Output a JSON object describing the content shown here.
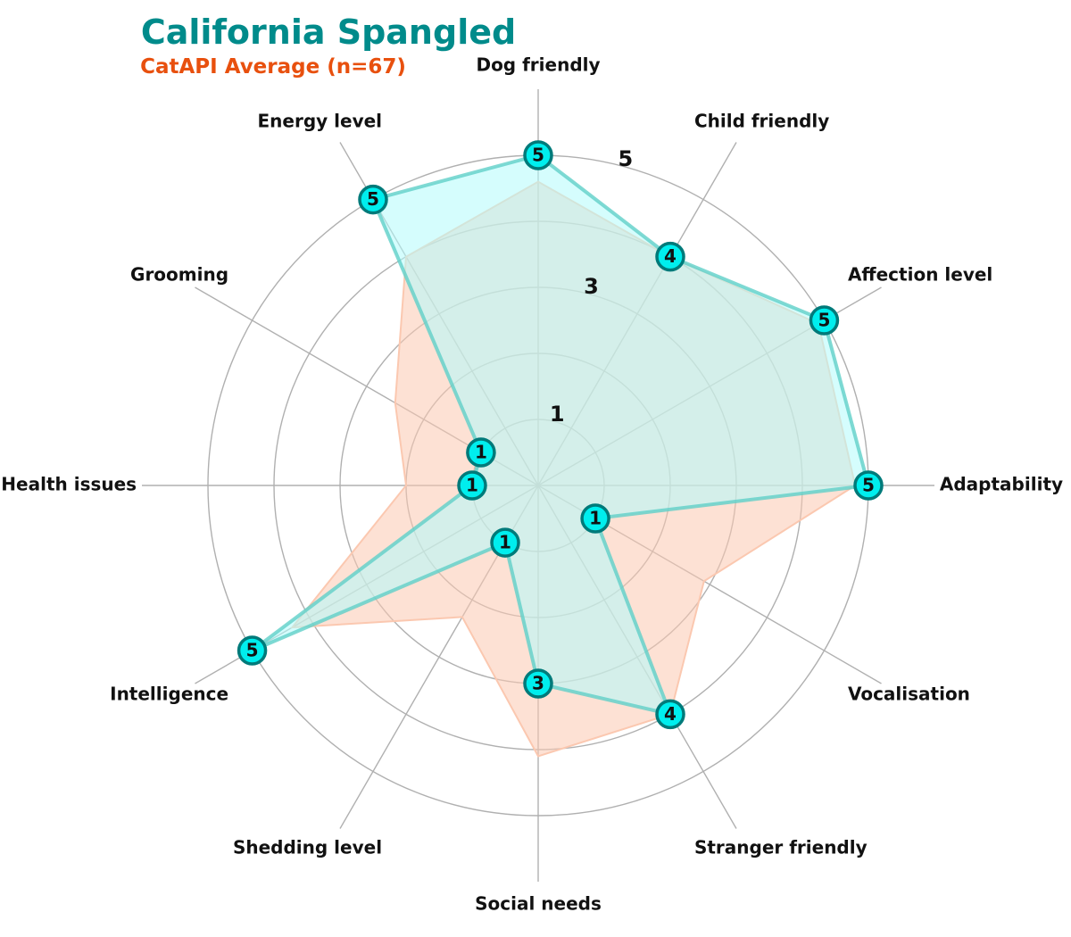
{
  "chart_data": {
    "type": "radar",
    "title": "California Spangled",
    "subtitle": "CatAPI Average (n=67)",
    "axes": [
      "Adaptability",
      "Affection level",
      "Child friendly",
      "Dog friendly",
      "Energy level",
      "Grooming",
      "Health issues",
      "Intelligence",
      "Shedding level",
      "Social needs",
      "Stranger friendly",
      "Vocalisation"
    ],
    "series": [
      {
        "values": [
          5,
          5,
          4,
          5,
          5,
          1,
          1,
          5,
          1,
          3,
          4,
          1
        ]
      },
      {
        "values": [
          4.8,
          4.9,
          4.0,
          4.6,
          4.0,
          2.5,
          2.0,
          4.3,
          2.3,
          4.1,
          4.0,
          2.9
        ]
      }
    ],
    "rlim": [
      0,
      5
    ],
    "ring_labels": [
      "1",
      "3",
      "5"
    ],
    "grid": true,
    "colors": {
      "title": "#008b8b",
      "subtitle": "#e8500e",
      "breed_fill": "#b3fcfc",
      "breed_line": "#5fd0c8",
      "average_fill": "#fbc8b0",
      "marker_fill": "#00eeee",
      "marker_edge": "#007a7a",
      "grid": "#b0b0b0"
    }
  }
}
